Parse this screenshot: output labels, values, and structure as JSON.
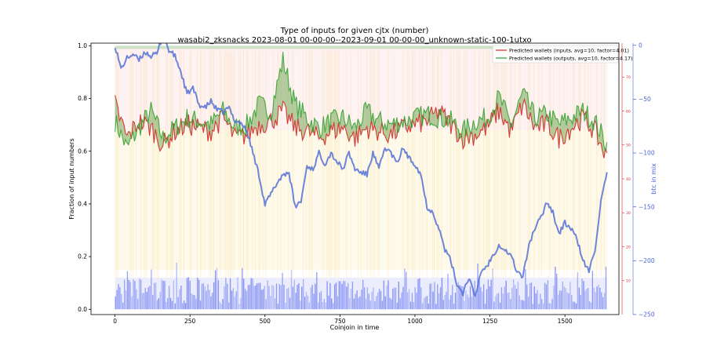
{
  "chart_data": {
    "type": "line",
    "title_line1": "Type of inputs for given cjtx (number)",
    "title_line2": "wasabi2_zksnacks 2023-08-01 00-00-00--2023-09-01 00-00-00_unknown-static-100-1utxo",
    "xlabel": "Coinjoin in time",
    "ylabel_left": "Fraction of input numbers",
    "ylabel_right": "btc in mix",
    "xlim": [
      -80,
      1680
    ],
    "x_ticks": [
      0,
      250,
      500,
      750,
      1000,
      1250,
      1500
    ],
    "ylim_left": [
      -0.02,
      1.01
    ],
    "y_ticks_left": [
      0.0,
      0.2,
      0.4,
      0.6,
      0.8,
      1.0
    ],
    "ylim_right_red": [
      0,
      80
    ],
    "y_ticks_right_red": [
      10,
      20,
      30,
      40,
      50,
      60,
      70
    ],
    "ylim_right_blue": [
      -250,
      2
    ],
    "y_ticks_right_blue": [
      0,
      -50,
      -100,
      -150,
      -200,
      -250
    ],
    "n_coinjoins": 1640,
    "legend_position": "top-right",
    "series": [
      {
        "name": "Predicted wallets (inputs, avg=10, factor=4.01)",
        "color": "#d62728",
        "axis": "red",
        "x": [
          0,
          40,
          80,
          120,
          160,
          200,
          240,
          280,
          320,
          360,
          400,
          440,
          480,
          520,
          560,
          600,
          640,
          680,
          720,
          760,
          800,
          840,
          880,
          920,
          960,
          1000,
          1040,
          1080,
          1120,
          1160,
          1200,
          1240,
          1280,
          1320,
          1360,
          1400,
          1440,
          1480,
          1520,
          1560,
          1600,
          1640
        ],
        "values": [
          62,
          52,
          57,
          55,
          50,
          54,
          56,
          55,
          54,
          58,
          52,
          53,
          56,
          57,
          60,
          55,
          54,
          52,
          54,
          55,
          52,
          55,
          54,
          53,
          55,
          56,
          57,
          60,
          56,
          52,
          53,
          55,
          60,
          54,
          62,
          55,
          56,
          52,
          55,
          58,
          54,
          46
        ]
      },
      {
        "name": "Predicted wallets (outputs, avg=10, factor=4.17)",
        "color": "#2ca02c",
        "axis": "red",
        "x": [
          0,
          40,
          80,
          120,
          160,
          200,
          240,
          280,
          320,
          360,
          400,
          440,
          480,
          520,
          560,
          600,
          640,
          680,
          720,
          760,
          800,
          840,
          880,
          920,
          960,
          1000,
          1040,
          1080,
          1120,
          1160,
          1200,
          1240,
          1280,
          1320,
          1360,
          1400,
          1440,
          1480,
          1520,
          1560,
          1600,
          1640
        ],
        "values": [
          57,
          49,
          55,
          60,
          52,
          55,
          58,
          57,
          56,
          60,
          55,
          56,
          62,
          60,
          75,
          62,
          58,
          55,
          57,
          58,
          55,
          60,
          57,
          56,
          57,
          58,
          59,
          58,
          57,
          54,
          57,
          58,
          64,
          56,
          65,
          58,
          59,
          56,
          58,
          60,
          57,
          50
        ]
      },
      {
        "name": "btc in mix",
        "color": "#5570d6",
        "axis": "blue",
        "x": [
          0,
          20,
          40,
          60,
          80,
          100,
          120,
          140,
          160,
          180,
          200,
          220,
          240,
          260,
          280,
          300,
          320,
          340,
          360,
          380,
          400,
          420,
          440,
          460,
          480,
          500,
          520,
          540,
          560,
          580,
          600,
          620,
          640,
          660,
          680,
          700,
          720,
          740,
          760,
          780,
          800,
          820,
          840,
          860,
          880,
          900,
          920,
          940,
          960,
          980,
          1000,
          1020,
          1040,
          1060,
          1080,
          1100,
          1120,
          1140,
          1160,
          1180,
          1200,
          1220,
          1240,
          1260,
          1280,
          1300,
          1320,
          1340,
          1360,
          1380,
          1400,
          1420,
          1440,
          1460,
          1480,
          1500,
          1520,
          1540,
          1560,
          1580,
          1600,
          1620,
          1640
        ],
        "values": [
          0,
          -22,
          -12,
          -8,
          -14,
          -6,
          -10,
          -8,
          10,
          -5,
          -10,
          -25,
          -45,
          -40,
          -55,
          -58,
          -52,
          -60,
          -62,
          -58,
          -70,
          -72,
          -80,
          -100,
          -120,
          -148,
          -138,
          -128,
          -120,
          -118,
          -150,
          -145,
          -112,
          -115,
          -100,
          -110,
          -100,
          -108,
          -115,
          -100,
          -115,
          -118,
          -120,
          -100,
          -115,
          -95,
          -100,
          -110,
          -95,
          -105,
          -110,
          -120,
          -150,
          -155,
          -170,
          -190,
          -200,
          -222,
          -230,
          -215,
          -235,
          -210,
          -205,
          -195,
          -185,
          -190,
          -195,
          -210,
          -215,
          -185,
          -170,
          -160,
          -145,
          -155,
          -175,
          -165,
          -170,
          -180,
          -200,
          -210,
          -190,
          -145,
          -120
        ]
      }
    ],
    "background_layers": [
      {
        "name": "pink band",
        "color": "#f6b7b7",
        "from": 0.68,
        "to": 1.0
      },
      {
        "name": "yellow band",
        "color": "#f7e08a",
        "from": 0.15,
        "to": 0.68
      },
      {
        "name": "blue band",
        "color": "#5a6cf0",
        "from": 0.0,
        "to": 0.12
      }
    ]
  }
}
